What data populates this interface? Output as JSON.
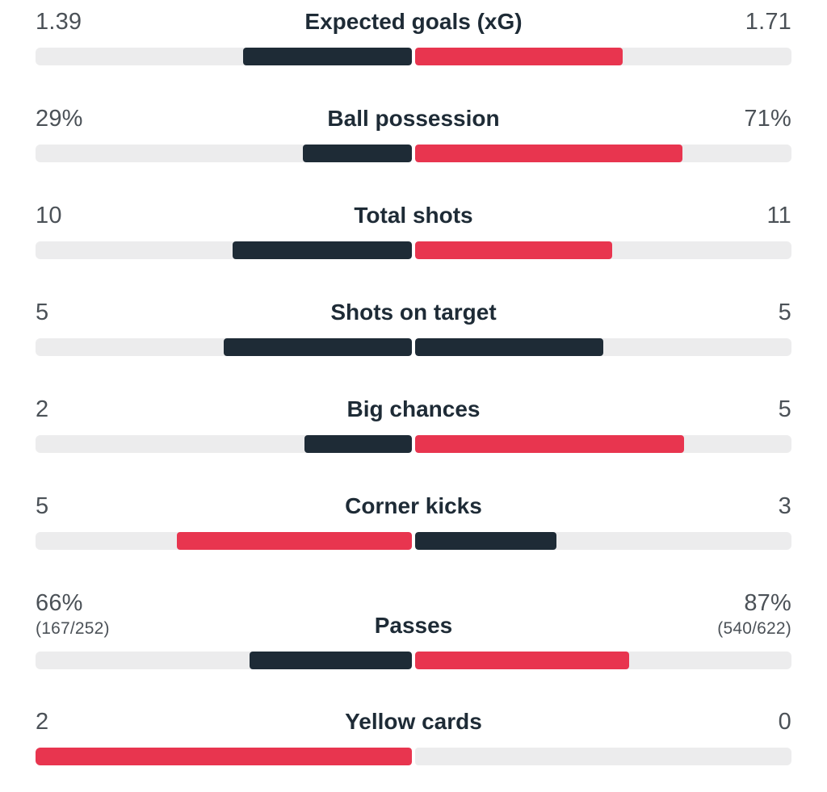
{
  "colors": {
    "dark": "#1e2b36",
    "red": "#e8354f",
    "track": "#ececed"
  },
  "stats": [
    {
      "label": "Expected goals (xG)",
      "home": "1.39",
      "away": "1.71",
      "home_sub": "",
      "away_sub": "",
      "home_fill": 0.448,
      "away_fill": 0.552,
      "home_color": "dark",
      "away_color": "red"
    },
    {
      "label": "Ball possession",
      "home": "29%",
      "away": "71%",
      "home_sub": "",
      "away_sub": "",
      "home_fill": 0.29,
      "away_fill": 0.71,
      "home_color": "dark",
      "away_color": "red"
    },
    {
      "label": "Total shots",
      "home": "10",
      "away": "11",
      "home_sub": "",
      "away_sub": "",
      "home_fill": 0.476,
      "away_fill": 0.524,
      "home_color": "dark",
      "away_color": "red"
    },
    {
      "label": "Shots on target",
      "home": "5",
      "away": "5",
      "home_sub": "",
      "away_sub": "",
      "home_fill": 0.5,
      "away_fill": 0.5,
      "home_color": "dark",
      "away_color": "dark"
    },
    {
      "label": "Big chances",
      "home": "2",
      "away": "5",
      "home_sub": "",
      "away_sub": "",
      "home_fill": 0.286,
      "away_fill": 0.714,
      "home_color": "dark",
      "away_color": "red"
    },
    {
      "label": "Corner kicks",
      "home": "5",
      "away": "3",
      "home_sub": "",
      "away_sub": "",
      "home_fill": 0.625,
      "away_fill": 0.375,
      "home_color": "red",
      "away_color": "dark"
    },
    {
      "label": "Passes",
      "home": "66%",
      "away": "87%",
      "home_sub": "(167/252)",
      "away_sub": "(540/622)",
      "home_fill": 0.431,
      "away_fill": 0.569,
      "home_color": "dark",
      "away_color": "red"
    },
    {
      "label": "Yellow cards",
      "home": "2",
      "away": "0",
      "home_sub": "",
      "away_sub": "",
      "home_fill": 1.0,
      "away_fill": 0.0,
      "home_color": "red",
      "away_color": "dark"
    }
  ]
}
